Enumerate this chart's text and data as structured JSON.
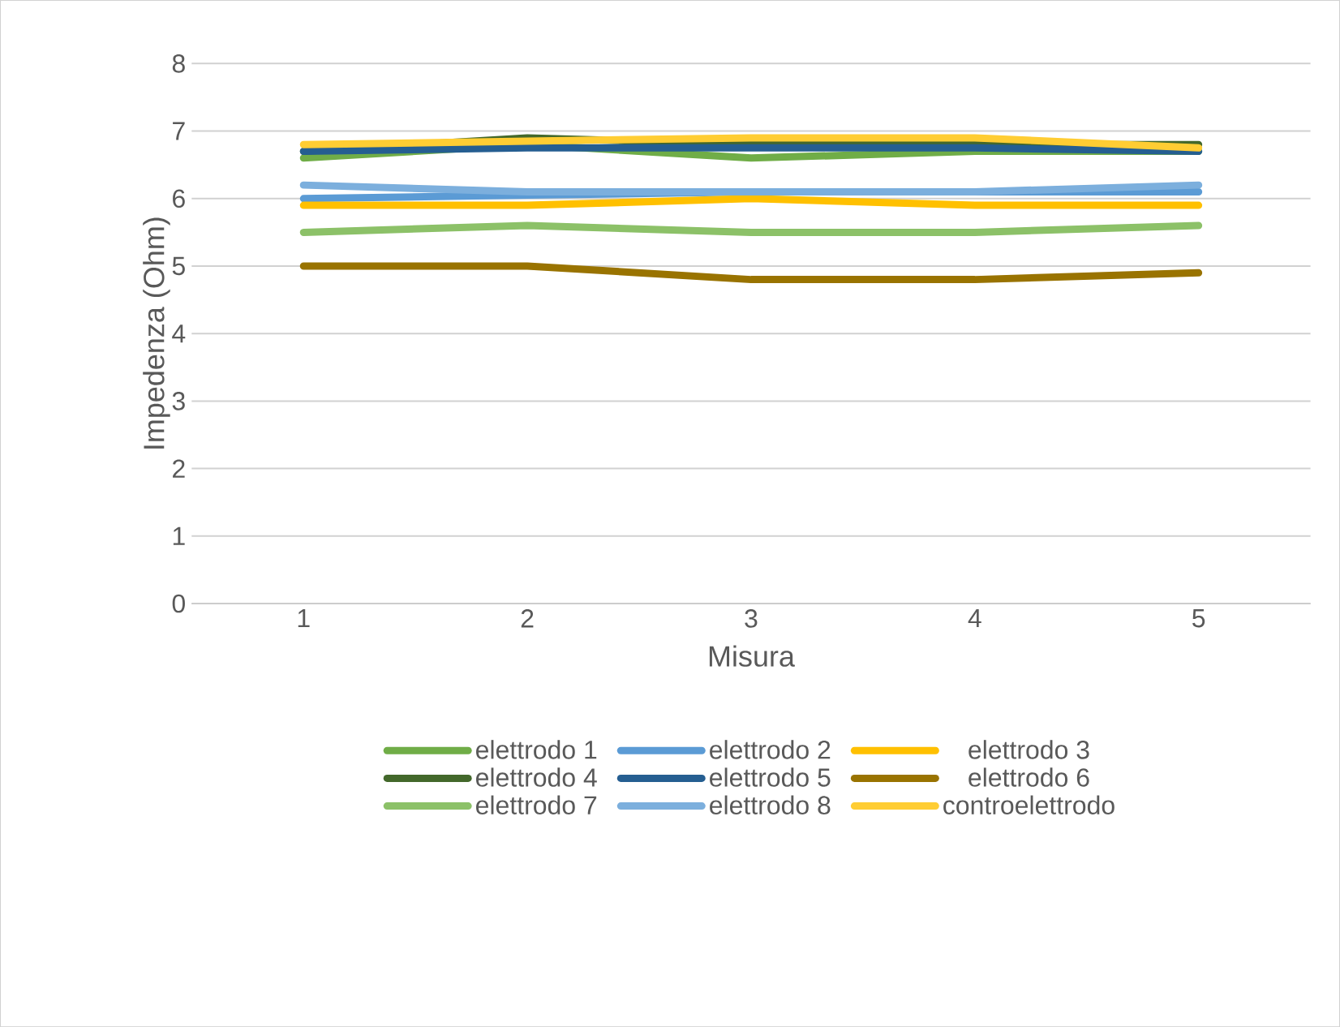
{
  "chart_data": {
    "type": "line",
    "xlabel": "Misura",
    "ylabel": "Impedenza (Ohm)",
    "categories": [
      "1",
      "2",
      "3",
      "4",
      "5"
    ],
    "ylim": [
      0,
      8
    ],
    "yticks": [
      0,
      1,
      2,
      3,
      4,
      5,
      6,
      7,
      8
    ],
    "grid": "y",
    "legend": "bottom",
    "marker": "none",
    "line_style": "solid",
    "series": [
      {
        "name": "elettrodo 1",
        "color": "#70ad47",
        "values": [
          6.6,
          6.8,
          6.6,
          6.7,
          6.7
        ]
      },
      {
        "name": "elettrodo 2",
        "color": "#5b9bd5",
        "values": [
          6.0,
          6.05,
          6.1,
          6.1,
          6.1
        ]
      },
      {
        "name": "elettrodo 3",
        "color": "#ffc000",
        "values": [
          5.9,
          5.9,
          6.0,
          5.9,
          5.9
        ]
      },
      {
        "name": "elettrodo 4",
        "color": "#43682b",
        "values": [
          6.7,
          6.9,
          6.8,
          6.8,
          6.8
        ]
      },
      {
        "name": "elettrodo 5",
        "color": "#255e91",
        "values": [
          6.7,
          6.75,
          6.75,
          6.75,
          6.7
        ]
      },
      {
        "name": "elettrodo 6",
        "color": "#997300",
        "values": [
          5.0,
          5.0,
          4.8,
          4.8,
          4.9
        ]
      },
      {
        "name": "elettrodo 7",
        "color": "#8cc168",
        "values": [
          5.5,
          5.6,
          5.5,
          5.5,
          5.6
        ]
      },
      {
        "name": "elettrodo 8",
        "color": "#7cafdd",
        "values": [
          6.2,
          6.1,
          6.1,
          6.1,
          6.2
        ]
      },
      {
        "name": "controelettrodo",
        "color": "#ffcd33",
        "values": [
          6.8,
          6.85,
          6.9,
          6.9,
          6.75
        ]
      }
    ]
  }
}
